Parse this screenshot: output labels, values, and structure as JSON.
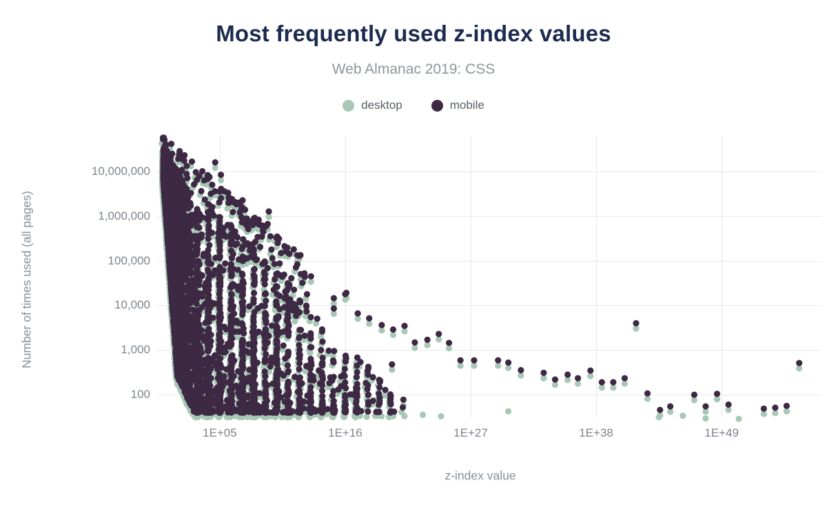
{
  "chart_data": {
    "type": "scatter",
    "title": "Most frequently used z-index values",
    "subtitle": "Web Almanac 2019: CSS",
    "xlabel": "z-index value",
    "ylabel": "Number of times used (all pages)",
    "x_scale": "log10",
    "y_scale": "log10",
    "x_domain_log10": [
      0,
      57.8
    ],
    "y_domain_log10": [
      1.45,
      7.78
    ],
    "grid": true,
    "grid_color": "#e9e9e9",
    "legend_position": "top",
    "background_color": "#ffffff",
    "title_color": "#1b2a4e",
    "subtitle_color": "#8f959b",
    "axis_label_color": "#878f96",
    "tick_label_color": "#7d848b",
    "x_ticks": [
      {
        "label": "1E+05",
        "log10": 5
      },
      {
        "label": "1E+16",
        "log10": 16
      },
      {
        "label": "1E+27",
        "log10": 27
      },
      {
        "label": "1E+38",
        "log10": 38
      },
      {
        "label": "1E+49",
        "log10": 49
      }
    ],
    "y_ticks": [
      {
        "label": "10,000,000",
        "log10": 7
      },
      {
        "label": "1,000,000",
        "log10": 6
      },
      {
        "label": "100,000",
        "log10": 5
      },
      {
        "label": "10,000",
        "log10": 4
      },
      {
        "label": "1,000",
        "log10": 3
      },
      {
        "label": "100",
        "log10": 2
      }
    ],
    "series": [
      {
        "name": "desktop",
        "color": "#a6c8b5"
      },
      {
        "name": "mobile",
        "color": "#3e2944"
      }
    ],
    "marker_radius_px": 4.6,
    "sparse_points_log10": [
      [
        15.0,
        4.16
      ],
      [
        15.0,
        3.93
      ],
      [
        16.0,
        4.25
      ],
      [
        16.1,
        4.28
      ],
      [
        17.1,
        3.82
      ],
      [
        18.1,
        3.71
      ],
      [
        19.2,
        3.56
      ],
      [
        20.2,
        3.46
      ],
      [
        20.1,
        2.68
      ],
      [
        21.2,
        3.54
      ],
      [
        21.1,
        1.89
      ],
      [
        22.1,
        3.17
      ],
      [
        23.2,
        3.23
      ],
      [
        24.2,
        3.36
      ],
      [
        25.1,
        3.16
      ],
      [
        26.1,
        2.77
      ],
      [
        27.3,
        2.77
      ],
      [
        29.4,
        2.77
      ],
      [
        30.3,
        2.72
      ],
      [
        31.4,
        2.55
      ],
      [
        33.4,
        2.49
      ],
      [
        34.4,
        2.34
      ],
      [
        35.5,
        2.45
      ],
      [
        36.4,
        2.37
      ],
      [
        37.5,
        2.54
      ],
      [
        38.5,
        2.28
      ],
      [
        39.5,
        2.28
      ],
      [
        40.5,
        2.37
      ],
      [
        41.5,
        3.6
      ],
      [
        42.5,
        2.03
      ],
      [
        43.6,
        1.66
      ],
      [
        44.5,
        1.74
      ],
      [
        46.6,
        2.0
      ],
      [
        47.6,
        1.74
      ],
      [
        48.6,
        2.02
      ],
      [
        49.6,
        1.78
      ],
      [
        52.7,
        1.69
      ],
      [
        53.7,
        1.71
      ],
      [
        54.7,
        1.75
      ],
      [
        55.8,
        2.71
      ],
      [
        9.3,
        6.1
      ],
      [
        9.2,
        5.82
      ],
      [
        7.0,
        6.35
      ],
      [
        4.6,
        7.2
      ],
      [
        5.1,
        6.92
      ],
      [
        6.9,
        5.97
      ],
      [
        11.8,
        5.12
      ],
      [
        12.1,
        4.7
      ],
      [
        13.0,
        4.65
      ]
    ],
    "desktop_only_points_log10": [
      [
        19.2,
        1.52
      ],
      [
        20.2,
        1.52
      ],
      [
        21.2,
        1.52
      ],
      [
        22.8,
        1.55
      ],
      [
        24.4,
        1.52
      ],
      [
        30.3,
        1.63
      ],
      [
        43.5,
        1.5
      ],
      [
        45.6,
        1.53
      ],
      [
        47.6,
        1.47
      ],
      [
        50.5,
        1.46
      ]
    ],
    "density_model": {
      "seed": 7,
      "cutoff": {
        "mobile": 1.6,
        "desktop": 1.5
      },
      "pair_offset": {
        "dx": -0.1,
        "dy_min": 0.05,
        "dy_rand": 0.08
      },
      "sparse_pair_dy": 0.12,
      "y_floor": {
        "min": 1.6,
        "steep": [
          7.0,
          3.6
        ],
        "shallow": [
          3.1,
          0.54
        ]
      },
      "components": {
        "wedge": {
          "count": 2400,
          "sigma": 1.25,
          "x_clip": 3.2,
          "env": [
            7.6,
            0.46
          ],
          "y_power": 1.55
        },
        "columns": {
          "count": 1500,
          "x_start": 3,
          "x_decay": 0.185,
          "x_max": 20.6,
          "quantize_prob": 0.74,
          "env": [
            7.35,
            0.26
          ],
          "y_power": 2.1
        },
        "upper": {
          "count": 175,
          "x_max": 13,
          "env": [
            7.78,
            0.22
          ],
          "band": 1.35,
          "band_power": 1.6
        }
      }
    }
  }
}
